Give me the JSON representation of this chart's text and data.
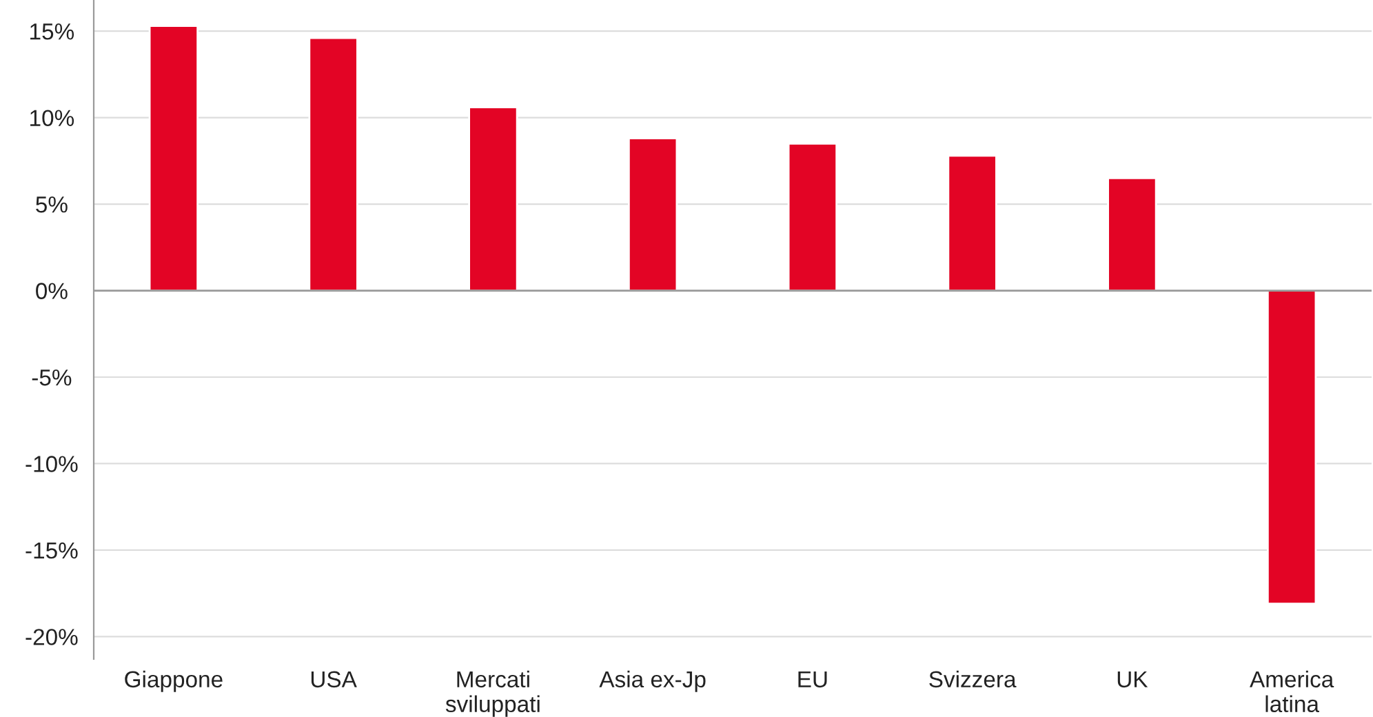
{
  "chart_data": {
    "type": "bar",
    "categories": [
      "Giappone",
      "USA",
      "Mercati\nsviluppati",
      "Asia ex-Jp",
      "EU",
      "Svizzera",
      "UK",
      "America\nlatina"
    ],
    "values": [
      15.3,
      14.6,
      10.6,
      8.8,
      8.5,
      7.8,
      6.5,
      -18.1
    ],
    "color": "#e30425",
    "ylim": [
      -21.3,
      16.8
    ],
    "yticks": [
      {
        "value": -20,
        "label": "-20%"
      },
      {
        "value": -15,
        "label": "-15%"
      },
      {
        "value": -10,
        "label": "-10%"
      },
      {
        "value": -5,
        "label": "-5%"
      },
      {
        "value": 0,
        "label": "0%"
      },
      {
        "value": 5,
        "label": "5%"
      },
      {
        "value": 10,
        "label": "10%"
      },
      {
        "value": 15,
        "label": "15%"
      }
    ],
    "grid": "y",
    "ref_lines": [
      {
        "axis": "y",
        "value": 0,
        "color": "#9a9a9a"
      }
    ]
  }
}
